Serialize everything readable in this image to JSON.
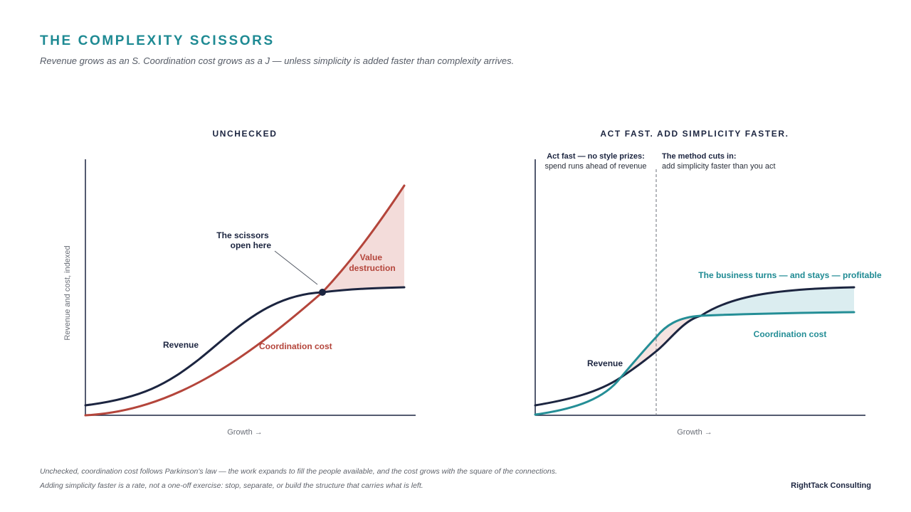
{
  "header": {
    "title": "THE COMPLEXITY SCISSORS",
    "subtitle": "Revenue grows as an S. Coordination cost grows as a J — unless simplicity is added faster than complexity arrives."
  },
  "panels": {
    "left": {
      "heading": "UNCHECKED",
      "y_axis_label": "Revenue and cost, indexed",
      "x_axis_label": "Growth →",
      "revenue_label": "Revenue",
      "cost_label": "Coordination cost",
      "callout": [
        "The scissors",
        "open here"
      ],
      "gap_label": [
        "Value",
        "destruction"
      ]
    },
    "right": {
      "heading": "ACT FAST. ADD SIMPLICITY FASTER.",
      "x_axis_label": "Growth →",
      "revenue_label": "Revenue",
      "cost_label": "Coordination cost",
      "profit_label": "The business turns — and stays — profitable",
      "phase_one_title": "Act fast — no style prizes:",
      "phase_one_text": "spend runs ahead of revenue",
      "phase_two_title": "The method cuts in:",
      "phase_two_text": "add simplicity faster than you act"
    }
  },
  "footer": {
    "line1": "Unchecked, coordination cost follows Parkinson's law — the work expands to fill the people available, and the cost grows with the square of the connections.",
    "line2": "Adding simplicity faster is a rate, not a one-off exercise: stop, separate, or build the structure that carries what is left.",
    "brand": "RightTack Consulting"
  },
  "colors": {
    "revenue": "#1c2540",
    "cost_unchecked": "#b4453b",
    "cost_checked": "#248e96",
    "value_destruction_fill": "#f3dcda",
    "profit_fill": "#dbedf0",
    "accent": "#1e8a93"
  },
  "icons": {
    "intersection": "intersection-dot"
  }
}
